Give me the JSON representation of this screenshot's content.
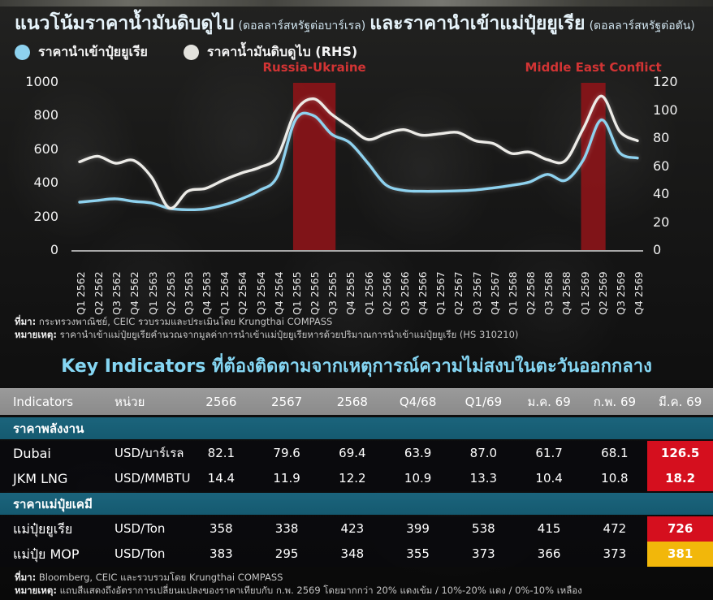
{
  "header": {
    "title_part1": "แนวโน้มราคาน้ำมันดิบดูไบ",
    "title_unit1": "(ดอลลาร์สหรัฐต่อบาร์เรล)",
    "title_part2": "และราคานำเข้าแม่ปุ๋ยยูเรีย",
    "title_unit2": "(ดอลลาร์สหรัฐต่อตัน)"
  },
  "legend": [
    {
      "label": "ราคานำเข้าปุ๋ยยูเรีย",
      "color": "#8ed2ef"
    },
    {
      "label": "ราคาน้ำมันดิบดูไบ (RHS)",
      "color": "#e3e2dd"
    }
  ],
  "chart_data": {
    "type": "line",
    "title": "แนวโน้มราคาน้ำมันดิบดูไบ และราคานำเข้าแม่ปุ๋ยยูเรีย",
    "categories": [
      "Q1 2562",
      "Q2 2562",
      "Q3 2562",
      "Q4 2562",
      "Q1 2563",
      "Q2 2563",
      "Q3 2563",
      "Q4 2563",
      "Q1 2564",
      "Q2 2564",
      "Q3 2564",
      "Q4 2564",
      "Q1 2565",
      "Q2 2565",
      "Q3 2565",
      "Q4 2565",
      "Q1 2566",
      "Q2 2566",
      "Q3 2566",
      "Q4 2566",
      "Q1 2567",
      "Q2 2567",
      "Q3 2567",
      "Q4 2567",
      "Q1 2568",
      "Q2 2568",
      "Q3 2568",
      "Q4 2568",
      "Q1 2569",
      "Q2 2569",
      "Q3 2569",
      "Q4 2569"
    ],
    "series": [
      {
        "name": "ราคานำเข้าปุ๋ยยูเรีย",
        "axis": "left",
        "unit": "USD/Ton",
        "color": "#8ed2ef",
        "values": [
          285,
          295,
          305,
          290,
          280,
          248,
          240,
          245,
          268,
          305,
          355,
          440,
          775,
          800,
          690,
          640,
          520,
          390,
          355,
          350,
          350,
          352,
          358,
          370,
          385,
          405,
          450,
          415,
          538,
          775,
          580,
          548
        ]
      },
      {
        "name": "ราคาน้ำมันดิบดูไบ (RHS)",
        "axis": "right",
        "unit": "USD/บาร์เรล",
        "color": "#ecebe7",
        "values": [
          63,
          67,
          62,
          64,
          52,
          30,
          42,
          44,
          50,
          55,
          59,
          67,
          99,
          108,
          97,
          88,
          79,
          83,
          86,
          82,
          83,
          84,
          78,
          76,
          69,
          70,
          64.5,
          64,
          87,
          110,
          85,
          78
        ]
      }
    ],
    "left_axis": {
      "ticks": [
        1000,
        800,
        600,
        400,
        200,
        0
      ],
      "range": [
        0,
        1000
      ]
    },
    "right_axis": {
      "ticks": [
        120,
        100,
        80,
        60,
        40,
        20,
        0
      ],
      "range": [
        0,
        120
      ]
    },
    "annotations": [
      {
        "label": "Russia-Ukraine",
        "from": "Q1 2565",
        "to": "Q3 2565"
      },
      {
        "label": "Middle East Conflict",
        "from": "Q1 2569",
        "to": "Q2 2569"
      }
    ],
    "grid": false,
    "legend_position": "top-left"
  },
  "chart_footnotes": {
    "source_label": "ที่มา:",
    "source_text": "กระทรวงพาณิชย์, CEIC รวบรวมและประเมินโดย Krungthai COMPASS",
    "note_label": "หมายเหตุ:",
    "note_text": "ราคานำเข้าแม่ปุ๋ยยูเรียคำนวณจากมูลค่าการนำเข้าแม่ปุ๋ยยูเรียหารด้วยปริมาณการนำเข้าแม่ปุ๋ยยูเรีย (HS 310210)"
  },
  "table": {
    "title": "Key Indicators ที่ต้องติดตามจากเหตุการณ์ความไม่สงบในตะวันออกกลาง",
    "columns": [
      "Indicators",
      "หน่วย",
      "2566",
      "2567",
      "2568",
      "Q4/68",
      "Q1/69",
      "ม.ค. 69",
      "ก.พ. 69",
      "มี.ค. 69"
    ],
    "sections": [
      {
        "label": "ราคาพลังงาน",
        "rows": [
          {
            "name": "Dubai",
            "unit": "USD/บาร์เรล",
            "values": [
              "82.1",
              "79.6",
              "69.4",
              "63.9",
              "87.0",
              "61.7",
              "68.1",
              "126.5"
            ],
            "highlight_last": "red"
          },
          {
            "name": "JKM LNG",
            "unit": "USD/MMBTU",
            "values": [
              "14.4",
              "11.9",
              "12.2",
              "10.9",
              "13.3",
              "10.4",
              "10.8",
              "18.2"
            ],
            "highlight_last": "red"
          }
        ]
      },
      {
        "label": "ราคาแม่ปุ๋ยเคมี",
        "rows": [
          {
            "name": "แม่ปุ๋ยยูเรีย",
            "unit": "USD/Ton",
            "values": [
              "358",
              "338",
              "423",
              "399",
              "538",
              "415",
              "472",
              "726"
            ],
            "highlight_last": "red"
          },
          {
            "name": "แม่ปุ๋ย MOP",
            "unit": "USD/Ton",
            "values": [
              "383",
              "295",
              "348",
              "355",
              "373",
              "366",
              "373",
              "381"
            ],
            "highlight_last": "yellow"
          }
        ]
      }
    ]
  },
  "table_footnotes": {
    "source_label": "ที่มา:",
    "source_text": "Bloomberg, CEIC และรวบรวมโดย Krungthai COMPASS",
    "note_label": "หมายเหตุ:",
    "note_text": "แถบสีแสดงถึงอัตราการเปลี่ยนแปลงของราคาเทียบกับ ก.พ. 2569 โดยมากกว่า 20% แดงเข้ม / 10%-20% แดง / 0%-10% เหลือง"
  },
  "colors": {
    "accent_blue": "#8ed2ef",
    "line_white": "#ecebe7",
    "annotation_red": "#d23434",
    "band_red": "#8c1418",
    "table_header_gray": "#909090",
    "section_teal": "#155a70",
    "highlight_red": "#d50f1e",
    "highlight_yellow": "#f2b70a",
    "table_title_blue": "#85d6f3"
  }
}
